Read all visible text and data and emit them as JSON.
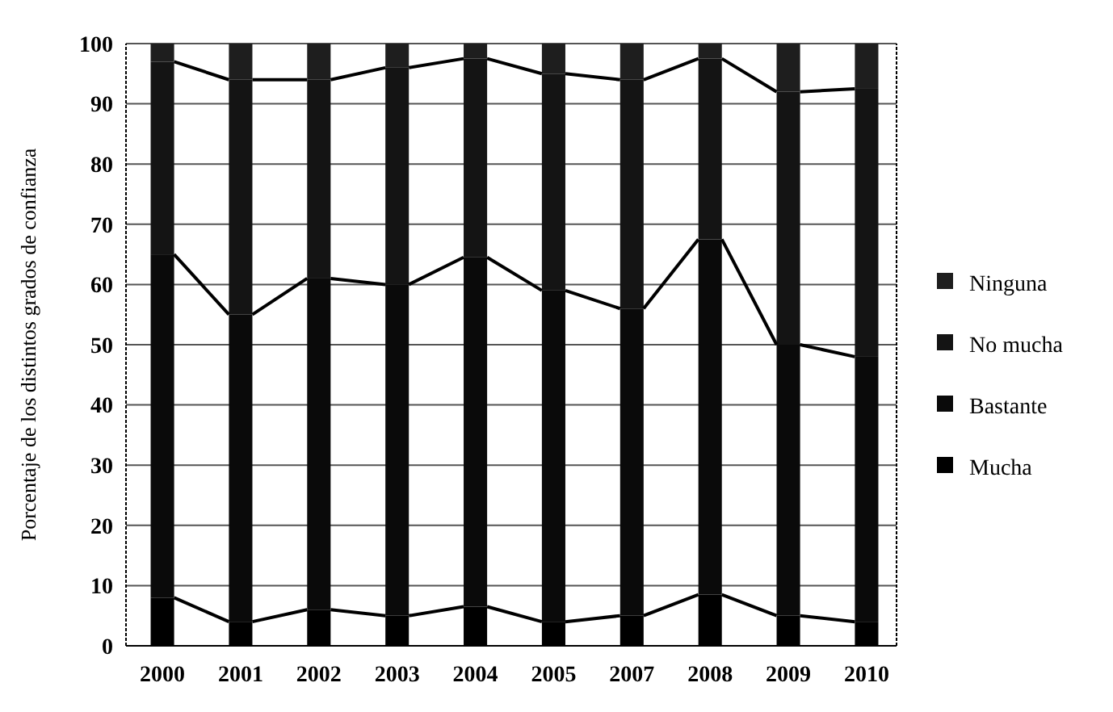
{
  "chart_data": {
    "type": "bar",
    "stacked": true,
    "ylabel": "Porcentaje de los distintos grados de confianza",
    "categories": [
      "2000",
      "2001",
      "2002",
      "2003",
      "2004",
      "2005",
      "2007",
      "2008",
      "2009",
      "2010"
    ],
    "series": [
      {
        "name": "Mucha",
        "color": "#000000",
        "values": [
          8,
          4,
          6,
          5,
          6.5,
          4,
          5,
          8.5,
          5,
          4
        ]
      },
      {
        "name": "Bastante",
        "color": "#0a0a0a",
        "values": [
          57,
          51,
          55,
          55,
          58,
          55,
          51,
          59,
          45,
          44
        ]
      },
      {
        "name": "No mucha",
        "color": "#141414",
        "values": [
          32,
          39,
          33,
          36,
          33,
          36,
          38,
          30,
          42,
          44.5
        ]
      },
      {
        "name": "Ninguna",
        "color": "#1e1e1e",
        "values": [
          3,
          6,
          6,
          4,
          2.5,
          5,
          6,
          2.5,
          8,
          7.5
        ]
      }
    ],
    "ylim": [
      0,
      100
    ],
    "yticks": [
      0,
      10,
      20,
      30,
      40,
      50,
      60,
      70,
      80,
      90,
      100
    ],
    "grid": "y",
    "legend": "right"
  }
}
